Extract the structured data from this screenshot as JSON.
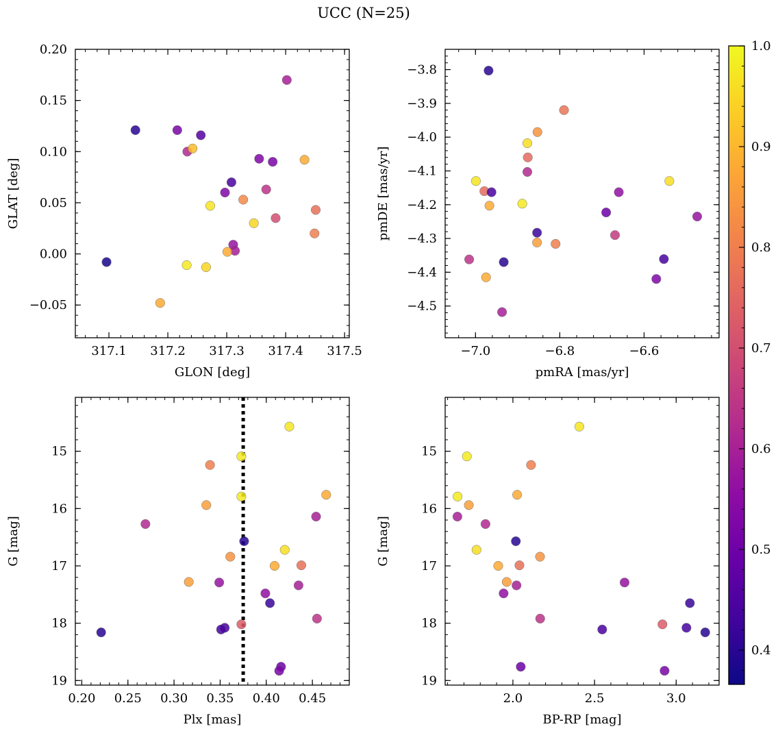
{
  "title": "UCC (N=25)",
  "colorbar": {
    "range": [
      0.366,
      1.0
    ],
    "ticks": [
      0.4,
      0.5,
      0.6,
      0.7,
      0.8,
      0.9,
      1.0
    ],
    "tick_labels": [
      "0.4",
      "0.5",
      "0.6",
      "0.7",
      "0.8",
      "0.9",
      "1.0"
    ],
    "colormap": "plasma",
    "colormap_colors": [
      "#0d0887",
      "#41049d",
      "#6a00a8",
      "#8f0da4",
      "#b12a90",
      "#cc4778",
      "#e16462",
      "#f2844b",
      "#fca636",
      "#fcce25",
      "#f0f921"
    ]
  },
  "chart_data": [
    {
      "type": "scatter",
      "title": "",
      "xlabel": "GLON [deg]",
      "ylabel": "GLAT [deg]",
      "xlim": [
        317.043,
        317.508
      ],
      "ylim": [
        -0.082,
        0.2
      ],
      "y_inverted": false,
      "xticks": [
        317.1,
        317.2,
        317.3,
        317.4,
        317.5
      ],
      "xtick_labels": [
        "317.1",
        "317.2",
        "317.3",
        "317.4",
        "317.5"
      ],
      "yticks": [
        -0.05,
        0.0,
        0.05,
        0.1,
        0.15,
        0.2
      ],
      "ytick_labels": [
        "−0.05",
        "0.00",
        "0.05",
        "0.10",
        "0.15",
        "0.20"
      ],
      "points": [
        {
          "x": 317.145,
          "y": 0.121,
          "c": 0.4
        },
        {
          "x": 317.216,
          "y": 0.121,
          "c": 0.52
        },
        {
          "x": 317.256,
          "y": 0.116,
          "c": 0.46
        },
        {
          "x": 317.233,
          "y": 0.1,
          "c": 0.62
        },
        {
          "x": 317.242,
          "y": 0.103,
          "c": 0.91
        },
        {
          "x": 317.402,
          "y": 0.17,
          "c": 0.6
        },
        {
          "x": 317.355,
          "y": 0.093,
          "c": 0.53
        },
        {
          "x": 317.378,
          "y": 0.09,
          "c": 0.52
        },
        {
          "x": 317.432,
          "y": 0.092,
          "c": 0.88
        },
        {
          "x": 317.308,
          "y": 0.07,
          "c": 0.44
        },
        {
          "x": 317.297,
          "y": 0.06,
          "c": 0.53
        },
        {
          "x": 317.367,
          "y": 0.063,
          "c": 0.64
        },
        {
          "x": 317.328,
          "y": 0.053,
          "c": 0.82
        },
        {
          "x": 317.272,
          "y": 0.047,
          "c": 0.97
        },
        {
          "x": 317.451,
          "y": 0.043,
          "c": 0.77
        },
        {
          "x": 317.383,
          "y": 0.035,
          "c": 0.7
        },
        {
          "x": 317.346,
          "y": 0.03,
          "c": 0.95
        },
        {
          "x": 317.449,
          "y": 0.02,
          "c": 0.8
        },
        {
          "x": 317.311,
          "y": 0.009,
          "c": 0.57
        },
        {
          "x": 317.314,
          "y": 0.003,
          "c": 0.6
        },
        {
          "x": 317.301,
          "y": 0.002,
          "c": 0.88
        },
        {
          "x": 317.096,
          "y": -0.008,
          "c": 0.38
        },
        {
          "x": 317.232,
          "y": -0.011,
          "c": 0.98
        },
        {
          "x": 317.265,
          "y": -0.013,
          "c": 0.95
        },
        {
          "x": 317.187,
          "y": -0.048,
          "c": 0.88
        }
      ]
    },
    {
      "type": "scatter",
      "title": "",
      "xlabel": "pmRA [mas/yr]",
      "ylabel": "pmDE [mas/yr]",
      "xlim": [
        -7.072,
        -6.422
      ],
      "ylim": [
        -4.594,
        -3.74
      ],
      "y_inverted": false,
      "xticks": [
        -7.0,
        -6.8,
        -6.6
      ],
      "xtick_labels": [
        "−7.0",
        "−6.8",
        "−6.6"
      ],
      "yticks": [
        -4.5,
        -4.4,
        -4.3,
        -4.2,
        -4.1,
        -4.0,
        -3.9,
        -3.8
      ],
      "ytick_labels": [
        "−4.5",
        "−4.4",
        "−4.3",
        "−4.2",
        "−4.1",
        "−4.0",
        "−3.9",
        "−3.8"
      ],
      "points": [
        {
          "x": -6.969,
          "y": -3.803,
          "c": 0.4
        },
        {
          "x": -6.79,
          "y": -3.92,
          "c": 0.78
        },
        {
          "x": -6.853,
          "y": -3.985,
          "c": 0.84
        },
        {
          "x": -6.877,
          "y": -4.018,
          "c": 0.96
        },
        {
          "x": -6.876,
          "y": -4.06,
          "c": 0.76
        },
        {
          "x": -6.877,
          "y": -4.103,
          "c": 0.62
        },
        {
          "x": -6.999,
          "y": -4.13,
          "c": 0.97
        },
        {
          "x": -6.979,
          "y": -4.16,
          "c": 0.76
        },
        {
          "x": -6.962,
          "y": -4.163,
          "c": 0.44
        },
        {
          "x": -6.66,
          "y": -4.163,
          "c": 0.56
        },
        {
          "x": -6.54,
          "y": -4.13,
          "c": 0.96
        },
        {
          "x": -6.967,
          "y": -4.203,
          "c": 0.88
        },
        {
          "x": -6.889,
          "y": -4.197,
          "c": 0.98
        },
        {
          "x": -6.69,
          "y": -4.223,
          "c": 0.5
        },
        {
          "x": -6.474,
          "y": -4.235,
          "c": 0.57
        },
        {
          "x": -6.854,
          "y": -4.283,
          "c": 0.42
        },
        {
          "x": -6.669,
          "y": -4.29,
          "c": 0.66
        },
        {
          "x": -6.854,
          "y": -4.312,
          "c": 0.86
        },
        {
          "x": -6.81,
          "y": -4.316,
          "c": 0.8
        },
        {
          "x": -7.015,
          "y": -4.362,
          "c": 0.64
        },
        {
          "x": -6.933,
          "y": -4.37,
          "c": 0.4
        },
        {
          "x": -6.553,
          "y": -4.361,
          "c": 0.44
        },
        {
          "x": -6.975,
          "y": -4.415,
          "c": 0.88
        },
        {
          "x": -6.571,
          "y": -4.42,
          "c": 0.53
        },
        {
          "x": -6.937,
          "y": -4.518,
          "c": 0.6
        }
      ]
    },
    {
      "type": "scatter",
      "title": "",
      "xlabel": "Plx [mas]",
      "ylabel": "G [mag]",
      "xlim": [
        0.193,
        0.49
      ],
      "ylim": [
        14.06,
        19.08
      ],
      "y_inverted": true,
      "xticks": [
        0.2,
        0.25,
        0.3,
        0.35,
        0.4,
        0.45
      ],
      "xtick_labels": [
        "0.20",
        "0.25",
        "0.30",
        "0.35",
        "0.40",
        "0.45"
      ],
      "yticks": [
        15,
        16,
        17,
        18,
        19
      ],
      "ytick_labels": [
        "15",
        "16",
        "17",
        "18",
        "19"
      ],
      "vline": {
        "x": 0.375,
        "style": "dotted"
      },
      "points": [
        {
          "x": 0.425,
          "y": 14.57,
          "c": 0.97
        },
        {
          "x": 0.373,
          "y": 15.09,
          "c": 0.98
        },
        {
          "x": 0.339,
          "y": 15.24,
          "c": 0.8
        },
        {
          "x": 0.373,
          "y": 15.79,
          "c": 0.98
        },
        {
          "x": 0.465,
          "y": 15.76,
          "c": 0.88
        },
        {
          "x": 0.335,
          "y": 15.94,
          "c": 0.86
        },
        {
          "x": 0.454,
          "y": 16.14,
          "c": 0.6
        },
        {
          "x": 0.269,
          "y": 16.27,
          "c": 0.62
        },
        {
          "x": 0.376,
          "y": 16.57,
          "c": 0.4
        },
        {
          "x": 0.42,
          "y": 16.72,
          "c": 0.96
        },
        {
          "x": 0.361,
          "y": 16.84,
          "c": 0.84
        },
        {
          "x": 0.409,
          "y": 17.0,
          "c": 0.88
        },
        {
          "x": 0.438,
          "y": 16.99,
          "c": 0.77
        },
        {
          "x": 0.316,
          "y": 17.28,
          "c": 0.86
        },
        {
          "x": 0.349,
          "y": 17.29,
          "c": 0.57
        },
        {
          "x": 0.435,
          "y": 17.34,
          "c": 0.6
        },
        {
          "x": 0.399,
          "y": 17.48,
          "c": 0.56
        },
        {
          "x": 0.404,
          "y": 17.65,
          "c": 0.42
        },
        {
          "x": 0.455,
          "y": 17.92,
          "c": 0.64
        },
        {
          "x": 0.373,
          "y": 18.02,
          "c": 0.73
        },
        {
          "x": 0.355,
          "y": 18.08,
          "c": 0.44
        },
        {
          "x": 0.351,
          "y": 18.11,
          "c": 0.44
        },
        {
          "x": 0.221,
          "y": 18.16,
          "c": 0.4
        },
        {
          "x": 0.416,
          "y": 18.76,
          "c": 0.5
        },
        {
          "x": 0.414,
          "y": 18.83,
          "c": 0.52
        }
      ]
    },
    {
      "type": "scatter",
      "title": "",
      "xlabel": "BP-RP [mag]",
      "ylabel": "G [mag]",
      "xlim": [
        1.585,
        3.263
      ],
      "ylim": [
        14.06,
        19.08
      ],
      "y_inverted": true,
      "xticks": [
        2.0,
        2.5,
        3.0
      ],
      "xtick_labels": [
        "2.0",
        "2.5",
        "3.0"
      ],
      "yticks": [
        15,
        16,
        17,
        18,
        19
      ],
      "ytick_labels": [
        "15",
        "16",
        "17",
        "18",
        "19"
      ],
      "points": [
        {
          "x": 2.407,
          "y": 14.57,
          "c": 0.97
        },
        {
          "x": 1.718,
          "y": 15.09,
          "c": 0.98
        },
        {
          "x": 2.111,
          "y": 15.24,
          "c": 0.8
        },
        {
          "x": 1.661,
          "y": 15.79,
          "c": 0.98
        },
        {
          "x": 2.026,
          "y": 15.76,
          "c": 0.88
        },
        {
          "x": 1.73,
          "y": 15.94,
          "c": 0.86
        },
        {
          "x": 1.66,
          "y": 16.14,
          "c": 0.6
        },
        {
          "x": 1.832,
          "y": 16.27,
          "c": 0.62
        },
        {
          "x": 2.018,
          "y": 16.57,
          "c": 0.4
        },
        {
          "x": 1.777,
          "y": 16.72,
          "c": 0.96
        },
        {
          "x": 2.166,
          "y": 16.84,
          "c": 0.84
        },
        {
          "x": 1.91,
          "y": 17.0,
          "c": 0.88
        },
        {
          "x": 2.04,
          "y": 16.99,
          "c": 0.77
        },
        {
          "x": 1.962,
          "y": 17.28,
          "c": 0.86
        },
        {
          "x": 2.684,
          "y": 17.29,
          "c": 0.57
        },
        {
          "x": 2.022,
          "y": 17.34,
          "c": 0.6
        },
        {
          "x": 1.943,
          "y": 17.48,
          "c": 0.56
        },
        {
          "x": 3.084,
          "y": 17.65,
          "c": 0.42
        },
        {
          "x": 2.167,
          "y": 17.92,
          "c": 0.64
        },
        {
          "x": 2.916,
          "y": 18.02,
          "c": 0.73
        },
        {
          "x": 3.063,
          "y": 18.08,
          "c": 0.44
        },
        {
          "x": 2.547,
          "y": 18.11,
          "c": 0.44
        },
        {
          "x": 3.178,
          "y": 18.16,
          "c": 0.4
        },
        {
          "x": 2.048,
          "y": 18.76,
          "c": 0.5
        },
        {
          "x": 2.929,
          "y": 18.83,
          "c": 0.52
        }
      ]
    }
  ]
}
